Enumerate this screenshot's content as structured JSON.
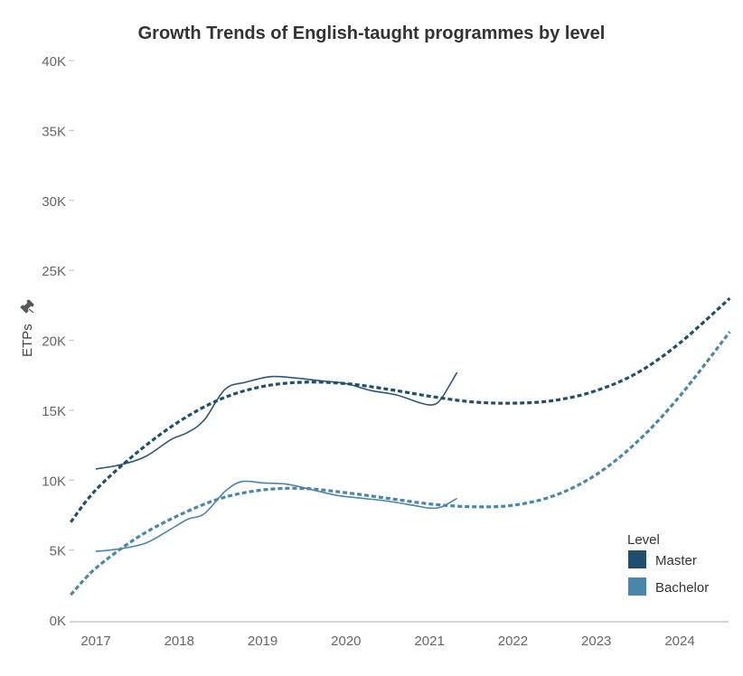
{
  "chart_data": {
    "type": "line",
    "title": "Growth Trends of English-taught programmes by level",
    "xlabel": "",
    "ylabel": "ETPs",
    "ylim": [
      0,
      40000
    ],
    "xlim": [
      2016.7,
      2024.6
    ],
    "y_ticks": [
      0,
      5000,
      10000,
      15000,
      20000,
      25000,
      30000,
      35000,
      40000
    ],
    "y_tick_labels": [
      "0K",
      "5K",
      "10K",
      "15K",
      "20K",
      "25K",
      "30K",
      "35K",
      "40K"
    ],
    "x_ticks": [
      2017,
      2018,
      2019,
      2020,
      2021,
      2022,
      2023,
      2024
    ],
    "x_tick_labels": [
      "2017",
      "2018",
      "2019",
      "2020",
      "2021",
      "2022",
      "2023",
      "2024"
    ],
    "grid": false,
    "legend": {
      "title": "Level",
      "placement": "bottom-right",
      "entries": [
        {
          "name": "Master",
          "color": "#1f4e6e"
        },
        {
          "name": "Bachelor",
          "color": "#4a86ab"
        }
      ]
    },
    "series": [
      {
        "name": "Master",
        "kind": "actual",
        "style": "solid",
        "color": "#2d5878",
        "x": [
          2017.0,
          2017.3,
          2017.6,
          2017.9,
          2018.1,
          2018.3,
          2018.55,
          2018.8,
          2019.1,
          2019.4,
          2019.7,
          2020.0,
          2020.3,
          2020.6,
          2020.9,
          2021.05,
          2021.15,
          2021.33
        ],
        "y": [
          10800,
          11100,
          11700,
          12900,
          13400,
          14300,
          16500,
          17000,
          17400,
          17300,
          17100,
          16900,
          16400,
          16100,
          15500,
          15400,
          15900,
          17700
        ]
      },
      {
        "name": "Bachelor",
        "kind": "actual",
        "style": "solid",
        "color": "#4a86ab",
        "x": [
          2017.0,
          2017.3,
          2017.6,
          2017.9,
          2018.1,
          2018.3,
          2018.55,
          2018.75,
          2019.0,
          2019.3,
          2019.6,
          2019.9,
          2020.2,
          2020.5,
          2020.8,
          2021.0,
          2021.15,
          2021.33
        ],
        "y": [
          4900,
          5100,
          5500,
          6500,
          7200,
          7600,
          9200,
          9900,
          9800,
          9700,
          9300,
          8900,
          8700,
          8500,
          8200,
          8000,
          8100,
          8700
        ]
      },
      {
        "name": "Master trend",
        "kind": "trend",
        "style": "dashed",
        "color": "#1f4e6e",
        "x": [
          2016.7,
          2017.0,
          2017.5,
          2018.0,
          2018.5,
          2019.0,
          2019.5,
          2020.0,
          2020.5,
          2021.0,
          2021.5,
          2022.0,
          2022.5,
          2023.0,
          2023.5,
          2024.0,
          2024.6
        ],
        "y": [
          7000,
          9300,
          12000,
          14200,
          15800,
          16700,
          17000,
          16900,
          16500,
          16000,
          15600,
          15500,
          15700,
          16400,
          17700,
          19800,
          23000
        ]
      },
      {
        "name": "Bachelor trend",
        "kind": "trend",
        "style": "dashed",
        "color": "#4a86ab",
        "x": [
          2016.7,
          2017.0,
          2017.5,
          2018.0,
          2018.5,
          2019.0,
          2019.5,
          2020.0,
          2020.5,
          2021.0,
          2021.5,
          2022.0,
          2022.5,
          2023.0,
          2023.5,
          2024.0,
          2024.6
        ],
        "y": [
          1800,
          3700,
          5900,
          7500,
          8700,
          9300,
          9400,
          9100,
          8700,
          8300,
          8100,
          8200,
          8900,
          10400,
          12800,
          16000,
          20600
        ]
      }
    ]
  },
  "icons": {
    "pin": "pin-icon"
  }
}
